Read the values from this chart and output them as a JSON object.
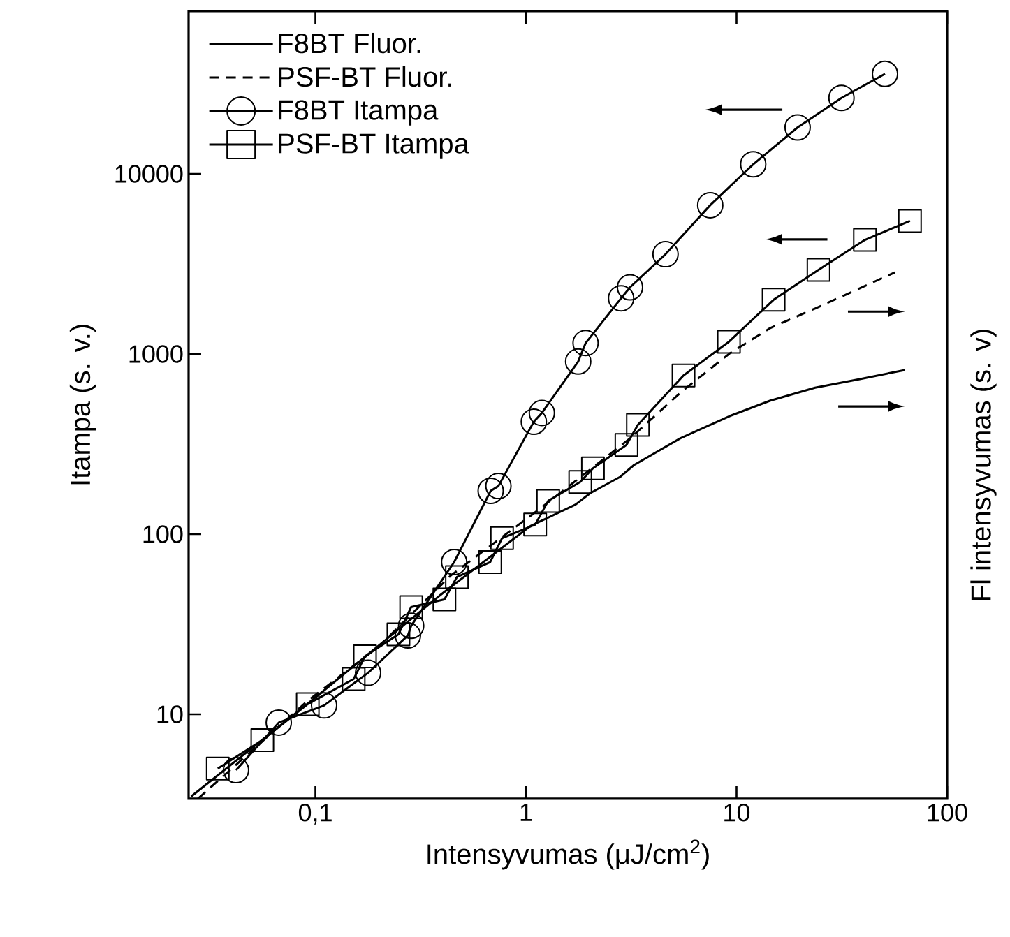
{
  "chart_data": {
    "type": "line",
    "xlabel": "Intensyvumas (μJ/cm$^{2}$)",
    "ylabel": "Itampa  (s. v.)",
    "y2label": "Fl intensyvumas  (s. v)",
    "log": "xy",
    "legend": "top left",
    "xlim": [
      0.025,
      100
    ],
    "ylim": [
      3.4,
      80000
    ],
    "xticks": [
      {
        "value": 0.1,
        "label": "0,1"
      },
      1,
      10,
      100
    ],
    "yticks": [
      10,
      100,
      1000,
      10000
    ],
    "series": [
      {
        "name": "F8BT Fluor.",
        "color": "#000000",
        "marker": "none",
        "line_style": "solid",
        "x": [
          0.0257,
          0.1,
          0.39,
          1.05,
          1.72,
          2.02,
          2.8,
          3.26,
          5.4,
          9.3,
          14.4,
          23.6,
          38.5,
          63
        ],
        "values": [
          3.5,
          12.4,
          45.7,
          111,
          146,
          169,
          208,
          242,
          340,
          453,
          550,
          650,
          726,
          815
        ]
      },
      {
        "name": "PSF-BT Fluor.",
        "color": "#000000",
        "marker": "none",
        "line_style": "dashed",
        "x": [
          0.0277,
          0.092,
          0.2,
          0.44,
          1.17,
          3.12,
          5.5,
          9.3,
          14.4,
          23.6,
          38.5,
          56.5
        ],
        "values": [
          3.4,
          11.9,
          23.8,
          59,
          139,
          340,
          620,
          1010,
          1390,
          1790,
          2316,
          2840
        ]
      },
      {
        "name": "F8BT Itampa",
        "color": "#000000",
        "marker": "circle",
        "line_style": "solid",
        "x": [
          0.042,
          0.067,
          0.11,
          0.178,
          0.275,
          0.285,
          0.456,
          0.68,
          0.74,
          1.09,
          1.19,
          1.77,
          1.92,
          2.83,
          3.12,
          4.6,
          7.5,
          12.0,
          19.5,
          31.5,
          50.7
        ],
        "values": [
          4.9,
          9.0,
          11.2,
          17,
          27.4,
          31,
          70,
          174,
          185,
          421,
          471,
          908,
          1150,
          2040,
          2345,
          3580,
          6700,
          11300,
          18100,
          26400,
          35900
        ]
      },
      {
        "name": "PSF-BT Itampa",
        "color": "#000000",
        "marker": "square",
        "line_style": "solid",
        "x": [
          0.0344,
          0.056,
          0.092,
          0.152,
          0.172,
          0.248,
          0.285,
          0.41,
          0.47,
          0.676,
          0.77,
          1.106,
          1.275,
          1.81,
          2.08,
          3.0,
          3.4,
          5.6,
          9.2,
          15.0,
          24.5,
          40.7,
          66.6
        ],
        "values": [
          5.0,
          7.2,
          11.4,
          15.7,
          21,
          27.8,
          39.4,
          43.4,
          57.8,
          70,
          95,
          113,
          153,
          195,
          232,
          313,
          404,
          760,
          1170,
          2000,
          2930,
          4300,
          5480
        ]
      }
    ]
  }
}
